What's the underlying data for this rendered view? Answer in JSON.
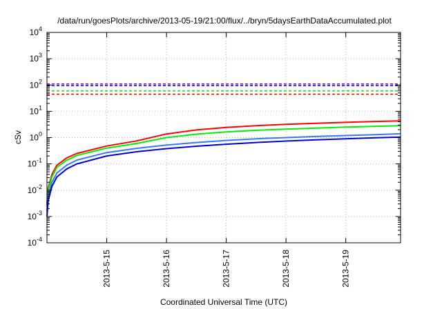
{
  "chart_data": {
    "type": "line",
    "title": "/data/run/goesPlots/archive/2013-05-19/21:00/flux/../bryn/5daysEarthDataAccumulated.plot",
    "xlabel": "Coordinated Universal Time (UTC)",
    "ylabel": "cSv",
    "y_scale": "log",
    "ylim_exponents": [
      -4,
      4
    ],
    "y_tick_base": "10",
    "y_tick_exponents": [
      "-4",
      "-3",
      "-2",
      "-1",
      "0",
      "1",
      "2",
      "3",
      "4"
    ],
    "xlim": [
      "2013-05-14T00:00",
      "2013-05-19T22:00"
    ],
    "x_tick_labels": [
      "2013-5-15",
      "2013-5-16",
      "2013-5-17",
      "2013-5-18",
      "2013-5-19"
    ],
    "x_tick_dates": [
      "2013-05-15T00:00",
      "2013-05-16T00:00",
      "2013-05-17T00:00",
      "2013-05-18T00:00",
      "2013-05-19T00:00"
    ],
    "grid": true,
    "series": [
      {
        "color": "#ff0000",
        "style": "solid",
        "x": [
          "2013-05-14T00:00",
          "2013-05-14T00:30",
          "2013-05-14T02:00",
          "2013-05-14T04:00",
          "2013-05-14T08:00",
          "2013-05-14T12:00",
          "2013-05-15T00:00",
          "2013-05-15T12:00",
          "2013-05-16T00:00",
          "2013-05-16T12:00",
          "2013-05-17T00:00",
          "2013-05-17T12:00",
          "2013-05-18T00:00",
          "2013-05-18T12:00",
          "2013-05-19T00:00",
          "2013-05-19T12:00",
          "2013-05-19T22:00"
        ],
        "y": [
          0.003,
          0.012,
          0.04,
          0.09,
          0.17,
          0.25,
          0.48,
          0.75,
          1.38,
          1.95,
          2.45,
          2.85,
          3.2,
          3.5,
          3.8,
          4.1,
          4.3
        ]
      },
      {
        "color": "#00ee00",
        "style": "solid",
        "x": [
          "2013-05-14T00:00",
          "2013-05-14T00:30",
          "2013-05-14T02:00",
          "2013-05-14T04:00",
          "2013-05-14T08:00",
          "2013-05-14T12:00",
          "2013-05-15T00:00",
          "2013-05-15T12:00",
          "2013-05-16T00:00",
          "2013-05-16T12:00",
          "2013-05-17T00:00",
          "2013-05-17T12:00",
          "2013-05-18T00:00",
          "2013-05-18T12:00",
          "2013-05-19T00:00",
          "2013-05-19T12:00",
          "2013-05-19T22:00"
        ],
        "y": [
          0.0025,
          0.01,
          0.032,
          0.075,
          0.14,
          0.21,
          0.4,
          0.6,
          1.0,
          1.35,
          1.65,
          1.9,
          2.1,
          2.3,
          2.5,
          2.7,
          2.85
        ]
      },
      {
        "color": "#3377ff",
        "style": "solid",
        "x": [
          "2013-05-14T00:00",
          "2013-05-14T00:30",
          "2013-05-14T02:00",
          "2013-05-14T04:00",
          "2013-05-14T08:00",
          "2013-05-14T12:00",
          "2013-05-15T00:00",
          "2013-05-15T12:00",
          "2013-05-16T00:00",
          "2013-05-16T12:00",
          "2013-05-17T00:00",
          "2013-05-17T12:00",
          "2013-05-18T00:00",
          "2013-05-18T12:00",
          "2013-05-19T00:00",
          "2013-05-19T12:00",
          "2013-05-19T22:00"
        ],
        "y": [
          0.0015,
          0.006,
          0.02,
          0.045,
          0.09,
          0.14,
          0.27,
          0.39,
          0.52,
          0.65,
          0.78,
          0.9,
          1.0,
          1.1,
          1.2,
          1.3,
          1.4
        ]
      },
      {
        "color": "#0000dd",
        "style": "solid",
        "x": [
          "2013-05-14T00:00",
          "2013-05-14T00:30",
          "2013-05-14T02:00",
          "2013-05-14T04:00",
          "2013-05-14T08:00",
          "2013-05-14T12:00",
          "2013-05-15T00:00",
          "2013-05-15T12:00",
          "2013-05-16T00:00",
          "2013-05-16T12:00",
          "2013-05-17T00:00",
          "2013-05-17T12:00",
          "2013-05-18T00:00",
          "2013-05-18T12:00",
          "2013-05-19T00:00",
          "2013-05-19T12:00",
          "2013-05-19T22:00"
        ],
        "y": [
          0.001,
          0.004,
          0.014,
          0.032,
          0.065,
          0.1,
          0.2,
          0.29,
          0.38,
          0.47,
          0.56,
          0.65,
          0.74,
          0.82,
          0.9,
          0.98,
          1.05
        ]
      },
      {
        "color": "#9900cc",
        "style": "dashed",
        "x": [
          "2013-05-14T00:00",
          "2013-05-19T22:00"
        ],
        "y": [
          110,
          110
        ]
      },
      {
        "color": "#0000dd",
        "style": "dashed",
        "x": [
          "2013-05-14T00:00",
          "2013-05-19T22:00"
        ],
        "y": [
          95,
          95
        ]
      },
      {
        "color": "#00ee00",
        "style": "dashed",
        "x": [
          "2013-05-14T00:00",
          "2013-05-19T22:00"
        ],
        "y": [
          60,
          60
        ]
      },
      {
        "color": "#ff0000",
        "style": "dashed",
        "x": [
          "2013-05-14T00:00",
          "2013-05-19T22:00"
        ],
        "y": [
          45,
          45
        ]
      }
    ]
  }
}
